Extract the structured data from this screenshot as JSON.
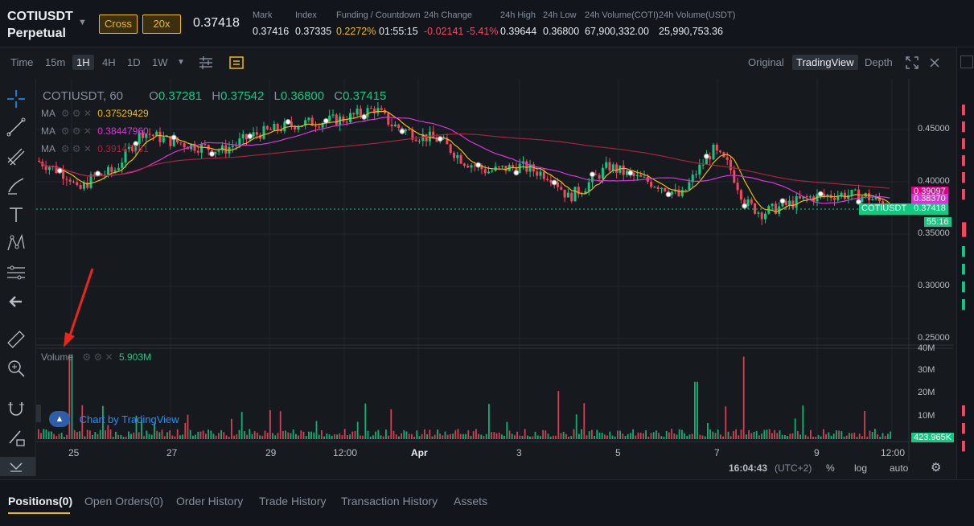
{
  "header": {
    "symbol": "COTIUSDT",
    "contract": "Perpetual",
    "margin_mode": "Cross",
    "leverage": "20x",
    "last_price": "0.37418",
    "stats": [
      {
        "label": "Mark",
        "value": "0.37416"
      },
      {
        "label": "Index",
        "value": "0.37335"
      },
      {
        "label": "Funding / Countdown",
        "value": "0.2272%",
        "value2": "01:55:15"
      },
      {
        "label": "24h Change",
        "value": "-0.02141 -5.41%"
      },
      {
        "label": "24h High",
        "value": "0.39644"
      },
      {
        "label": "24h Low",
        "value": "0.36800"
      },
      {
        "label": "24h Volume(COTI)",
        "value": "67,900,332.00"
      },
      {
        "label": "24h Volume(USDT)",
        "value": "25,990,753.36"
      }
    ]
  },
  "toolbar": {
    "intervals": [
      "Time",
      "15m",
      "1H",
      "4H",
      "1D",
      "1W"
    ],
    "active_interval": "1H",
    "views": [
      "Original",
      "TradingView",
      "Depth"
    ],
    "active_view": "TradingView"
  },
  "legend": {
    "title": "COTIUSDT, 60",
    "o_label": "O",
    "o": "0.37281",
    "h_label": "H",
    "h": "0.37542",
    "l_label": "L",
    "l": "0.36800",
    "c_label": "C",
    "c": "0.37415",
    "ma": [
      {
        "label": "MA",
        "value": "0.37529429",
        "color": "#f0b90b"
      },
      {
        "label": "MA",
        "value": "0.38447960",
        "color": "#d636d6"
      },
      {
        "label": "MA",
        "value": "0.39147081",
        "color": "#a8243e"
      }
    ],
    "volume_label": "Volume",
    "volume_value": "5.903M",
    "watermark": "Chart by TradingView"
  },
  "price_axis": {
    "ticks": [
      "0.45000",
      "0.40000",
      "0.35000",
      "0.30000",
      "0.25000"
    ],
    "tags": [
      {
        "value": "0.39097",
        "color": "#e0008a"
      },
      {
        "value": "0.38370",
        "color": "#d636d6"
      }
    ],
    "last_tag_symbol": "COTIUSDT",
    "last_tag_value": "0.37418",
    "countdown": "55:16"
  },
  "volume_axis": {
    "ticks": [
      "40M",
      "30M",
      "20M",
      "10M"
    ],
    "last_tag": "423.965K"
  },
  "time_axis": {
    "ticks": [
      "25",
      "27",
      "29",
      "12:00",
      "Apr",
      "3",
      "5",
      "7",
      "9",
      "12:00"
    ],
    "clock": "16:04:43",
    "tz": "(UTC+2)",
    "pct": "%",
    "log": "log",
    "auto": "auto"
  },
  "bottom_tabs": [
    "Positions(0)",
    "Open Orders(0)",
    "Order History",
    "Trade History",
    "Transaction History",
    "Assets"
  ],
  "colors": {
    "up": "#0ecb81",
    "down": "#f6465d",
    "bg": "#161a1e",
    "accent": "#f0b90b",
    "ma7": "#f0b90b",
    "ma25": "#d636d6",
    "ma99": "#a8243e"
  },
  "icons": [
    "crosshair-icon",
    "trend-line-icon",
    "fib-icon",
    "brush-icon",
    "text-icon",
    "pattern-icon",
    "measure-icon",
    "back-arrow-icon",
    "ruler-icon",
    "zoom-icon",
    "magnet-icon",
    "lock-pencil-icon",
    "eye-icon",
    "settings-icon",
    "fullscreen-icon",
    "close-icon",
    "indicators-icon",
    "chart-type-icon"
  ]
}
